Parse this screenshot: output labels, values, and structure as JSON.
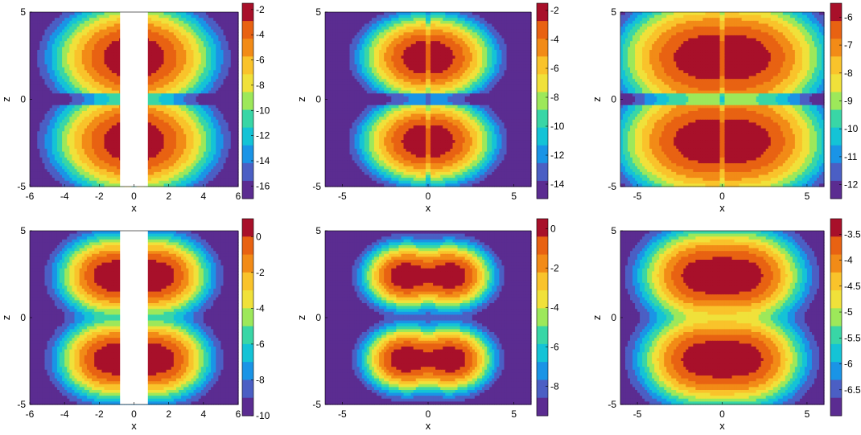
{
  "palette": [
    "#5b2c91",
    "#4b5fc4",
    "#1a94e6",
    "#14c3d6",
    "#39d6a6",
    "#9de85a",
    "#f0e13a",
    "#f9c32b",
    "#f28b17",
    "#e86212",
    "#a8102a"
  ],
  "chart_data": [
    {
      "type": "heatmap",
      "field": "dipole-lobes",
      "sigma": 1.2,
      "xlim": [
        -6,
        6
      ],
      "ylim": [
        -5,
        5
      ],
      "xticks": [
        -6,
        -4,
        -2,
        0,
        2,
        4,
        6
      ],
      "yticks": [
        -5,
        0,
        5
      ],
      "xlabel": "x",
      "ylabel": "z",
      "clim": [
        -17,
        -1.5
      ],
      "colorbar_ticks": [
        -2,
        -4,
        -6,
        -8,
        -10,
        -12,
        -14,
        -16
      ],
      "masked_x_range": [
        -0.8,
        0.8
      ]
    },
    {
      "type": "heatmap",
      "field": "dipole-lobes",
      "sigma": 0.8,
      "xlim": [
        -6,
        6
      ],
      "ylim": [
        -5,
        5
      ],
      "xticks": [
        -5,
        0,
        5
      ],
      "yticks": [
        -5,
        0,
        5
      ],
      "xlabel": "x",
      "ylabel": "z",
      "clim": [
        -15,
        -1.5
      ],
      "colorbar_ticks": [
        -2,
        -4,
        -6,
        -8,
        -10,
        -12,
        -14
      ]
    },
    {
      "type": "heatmap",
      "field": "dipole-lobes",
      "sigma": 1.6,
      "xlim": [
        -6,
        6
      ],
      "ylim": [
        -5,
        5
      ],
      "xticks": [
        -5,
        0,
        5
      ],
      "yticks": [
        -5,
        0,
        5
      ],
      "xlabel": "x",
      "ylabel": "z",
      "clim": [
        -12.5,
        -5.5
      ],
      "colorbar_ticks": [
        -6,
        -7,
        -8,
        -9,
        -10,
        -11,
        -12
      ]
    },
    {
      "type": "heatmap",
      "field": "cross-lobes",
      "sigma": 1.2,
      "xlim": [
        -6,
        6
      ],
      "ylim": [
        -5,
        5
      ],
      "xticks": [
        -6,
        -4,
        -2,
        0,
        2,
        4,
        6
      ],
      "yticks": [
        -5,
        0,
        5
      ],
      "xlabel": "x",
      "ylabel": "z",
      "clim": [
        -10,
        1
      ],
      "colorbar_ticks": [
        0,
        -2,
        -4,
        -6,
        -8,
        -10
      ],
      "masked_x_range": [
        -0.8,
        0.8
      ]
    },
    {
      "type": "heatmap",
      "field": "cross-lobes",
      "sigma": 0.8,
      "xlim": [
        -6,
        6
      ],
      "ylim": [
        -5,
        5
      ],
      "xticks": [
        -5,
        0,
        5
      ],
      "yticks": [
        -5,
        0,
        5
      ],
      "xlabel": "x",
      "ylabel": "z",
      "clim": [
        -9.5,
        0.5
      ],
      "colorbar_ticks": [
        0,
        -2,
        -4,
        -6,
        -8
      ]
    },
    {
      "type": "heatmap",
      "field": "cross-lobes",
      "sigma": 1.6,
      "xlim": [
        -6,
        6
      ],
      "ylim": [
        -5,
        5
      ],
      "xticks": [
        -5,
        0,
        5
      ],
      "yticks": [
        -5,
        0,
        5
      ],
      "xlabel": "x",
      "ylabel": "z",
      "clim": [
        -7,
        -3.2
      ],
      "colorbar_ticks": [
        -3.5,
        -4,
        -4.5,
        -5,
        -5.5,
        -6,
        -6.5
      ]
    }
  ]
}
